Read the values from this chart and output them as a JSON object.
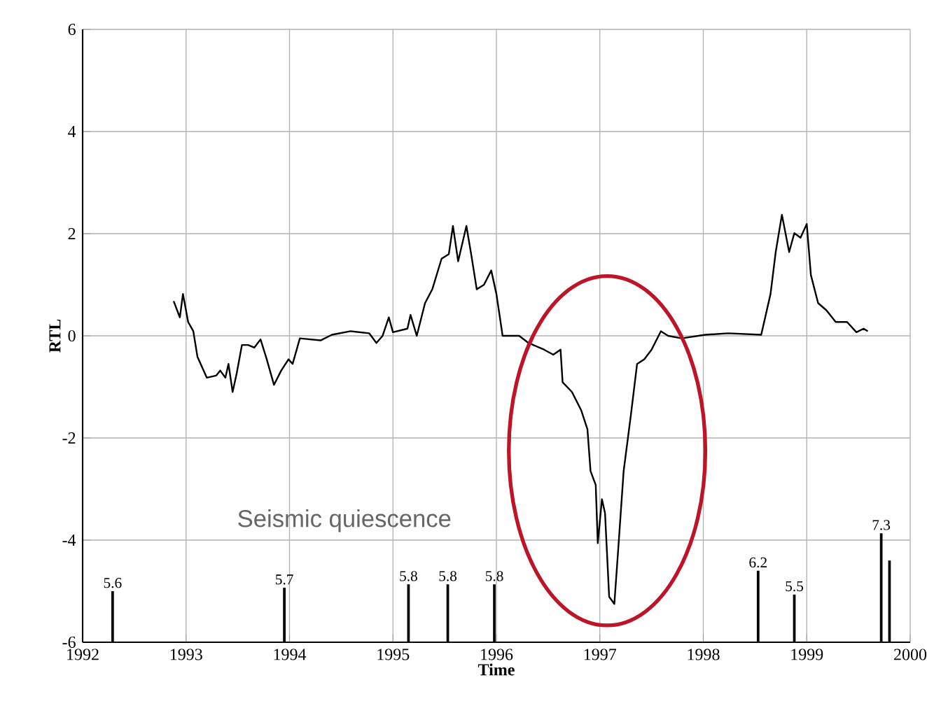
{
  "chart_data": {
    "type": "line",
    "xlabel": "Time",
    "ylabel": "RTL",
    "xlim": [
      1992,
      2000
    ],
    "ylim": [
      -6,
      6
    ],
    "xticks": [
      1992,
      1993,
      1994,
      1995,
      1996,
      1997,
      1998,
      1999,
      2000
    ],
    "yticks": [
      -6,
      -4,
      -2,
      0,
      2,
      4,
      6
    ],
    "grid": true,
    "y2lim": [
      4.1,
      22.1
    ],
    "annotations": [
      "Seismic quiescence"
    ],
    "series": [
      {
        "color": "#000000",
        "x": [
          1992.88,
          1992.94,
          1992.97,
          1993.02,
          1993.07,
          1993.11,
          1993.2,
          1993.29,
          1993.33,
          1993.38,
          1993.41,
          1993.45,
          1993.49,
          1993.54,
          1993.6,
          1993.66,
          1993.72,
          1993.78,
          1993.85,
          1993.92,
          1993.99,
          1994.03,
          1994.1,
          1994.3,
          1994.41,
          1994.59,
          1994.77,
          1994.84,
          1994.9,
          1994.96,
          1995.0,
          1995.14,
          1995.17,
          1995.23,
          1995.31,
          1995.38,
          1995.47,
          1995.54,
          1995.58,
          1995.63,
          1995.71,
          1995.76,
          1995.81,
          1995.88,
          1995.95,
          1996.0,
          1996.06,
          1996.22,
          1996.31,
          1996.46,
          1996.55,
          1996.62,
          1996.64,
          1996.73,
          1996.82,
          1996.88,
          1996.91,
          1996.96,
          1996.98,
          1997.02,
          1997.05,
          1997.09,
          1997.14,
          1997.18,
          1997.23,
          1997.3,
          1997.36,
          1997.43,
          1997.5,
          1997.59,
          1997.66,
          1997.79,
          1998.02,
          1998.24,
          1998.56,
          1998.65,
          1998.7,
          1998.76,
          1998.83,
          1998.88,
          1998.94,
          1999.0,
          1999.04,
          1999.11,
          1999.19,
          1999.28,
          1999.39,
          1999.48,
          1999.55,
          1999.59
        ],
        "values": [
          0.68,
          0.36,
          0.82,
          0.27,
          0.09,
          -0.41,
          -0.82,
          -0.78,
          -0.68,
          -0.82,
          -0.55,
          -1.1,
          -0.73,
          -0.18,
          -0.18,
          -0.23,
          -0.07,
          -0.46,
          -0.96,
          -0.68,
          -0.46,
          -0.55,
          -0.05,
          -0.09,
          0.02,
          0.09,
          0.05,
          -0.14,
          0,
          0.36,
          0.07,
          0.14,
          0.41,
          0,
          0.64,
          0.91,
          1.51,
          1.6,
          2.15,
          1.46,
          2.15,
          1.55,
          0.91,
          1.0,
          1.28,
          0.82,
          0,
          0,
          -0.14,
          -0.27,
          -0.37,
          -0.27,
          -0.91,
          -1.1,
          -1.46,
          -1.83,
          -2.65,
          -2.92,
          -4.06,
          -3.2,
          -3.47,
          -5.11,
          -5.25,
          -4.11,
          -2.65,
          -1.55,
          -0.55,
          -0.46,
          -0.27,
          0.09,
          0,
          -0.05,
          0.02,
          0.05,
          0.02,
          0.82,
          1.64,
          2.37,
          1.64,
          2.01,
          1.92,
          2.19,
          1.19,
          0.64,
          0.5,
          0.27,
          0.27,
          0.07,
          0.14,
          0.09
        ]
      },
      {
        "type": "bar",
        "axis": "y2",
        "color": "#000000",
        "x": [
          1992.29,
          1993.95,
          1995.15,
          1995.53,
          1995.98,
          1998.53,
          1998.88,
          1999.72,
          1999.8
        ],
        "values": [
          5.6,
          5.7,
          5.8,
          5.8,
          5.8,
          6.2,
          5.5,
          7.3,
          6.5
        ],
        "value_labels": [
          "5.6",
          "5.7",
          "5.8",
          "5.8",
          "5.8",
          "6.2",
          "5.5",
          "7.3",
          null
        ]
      }
    ]
  }
}
